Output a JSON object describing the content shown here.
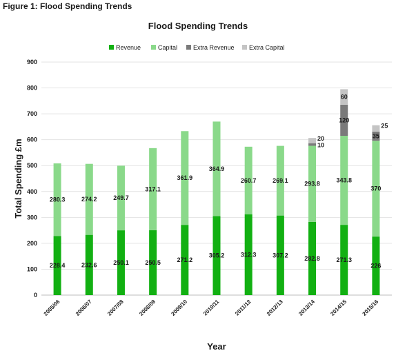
{
  "figure_caption": "Figure 1: Flood Spending Trends",
  "colors": {
    "revenue": "#12b012",
    "capital": "#8ad98a",
    "extra_revenue": "#7a7a7a",
    "extra_capital": "#c4c4c4",
    "grid": "#e3e3e3"
  },
  "chart_data": {
    "type": "bar",
    "stacked": true,
    "title": "Flood Spending Trends",
    "xlabel": "Year",
    "ylabel": "Total Spending £m",
    "ylim": [
      0,
      900
    ],
    "yticks": [
      0,
      100,
      200,
      300,
      400,
      500,
      600,
      700,
      800,
      900
    ],
    "grid": true,
    "legend_position": "top",
    "categories": [
      "2005/06",
      "2006/07",
      "2007/08",
      "2008/09",
      "2009/10",
      "2010/11",
      "2011/12",
      "2012/13",
      "2013/14",
      "2014/15",
      "2015/16"
    ],
    "series": [
      {
        "name": "Revenue",
        "values": [
          228.4,
          232.6,
          250.1,
          250.5,
          271.2,
          305.2,
          312.3,
          307.2,
          282.8,
          271.3,
          226
        ]
      },
      {
        "name": "Capital",
        "values": [
          280.3,
          274.2,
          249.7,
          317.1,
          361.9,
          364.9,
          260.7,
          269.1,
          293.8,
          343.8,
          370
        ]
      },
      {
        "name": "Extra Revenue",
        "values": [
          null,
          null,
          null,
          null,
          null,
          null,
          null,
          null,
          10,
          120,
          35
        ]
      },
      {
        "name": "Extra Capital",
        "values": [
          null,
          null,
          null,
          null,
          null,
          null,
          null,
          null,
          20,
          60,
          25
        ]
      }
    ],
    "data_labels": {
      "Revenue": [
        "228.4",
        "232.6",
        "250.1",
        "250.5",
        "271.2",
        "305.2",
        "312.3",
        "307.2",
        "282.8",
        "271.3",
        "226"
      ],
      "Capital": [
        "280.3",
        "274.2",
        "249.7",
        "317.1",
        "361.9",
        "364.9",
        "260.7",
        "269.1",
        "293.8",
        "343.8",
        "370"
      ],
      "Extra Revenue": [
        null,
        null,
        null,
        null,
        null,
        null,
        null,
        null,
        "10",
        "120",
        "35"
      ],
      "Extra Capital": [
        null,
        null,
        null,
        null,
        null,
        null,
        null,
        null,
        "20",
        "60",
        "25"
      ]
    }
  }
}
